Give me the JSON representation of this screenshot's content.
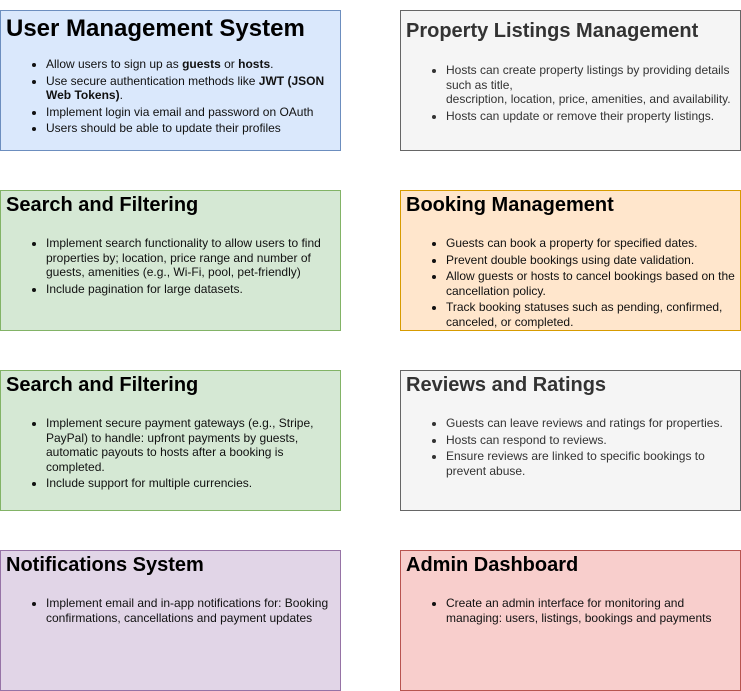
{
  "cards": {
    "user_mgmt": {
      "title": "User Management System",
      "items": [
        [
          "Allow users to sign up as ",
          {
            "b": "guests"
          },
          " or ",
          {
            "b": "hosts"
          },
          "."
        ],
        [
          "Use secure authentication methods like ",
          {
            "b": "JWT (JSON Web Tokens)"
          },
          "."
        ],
        [
          "Implement login via email and password on OAuth"
        ],
        [
          "Users should be able to update their profiles"
        ]
      ]
    },
    "property": {
      "title": "Property Listings Management",
      "items": [
        [
          "Hosts can create property listings by providing details such as title,\ndescription, location, price, amenities, and availability."
        ],
        [
          "Hosts can update or remove their property listings."
        ]
      ]
    },
    "search": {
      "title": "Search and Filtering",
      "items": [
        [
          "Implement search functionality to allow users to find properties by; location, price range and number of guests, amenities (e.g., Wi-Fi, pool, pet-friendly)"
        ],
        [
          "Include pagination for large datasets."
        ]
      ]
    },
    "booking": {
      "title": "Booking Management",
      "items": [
        [
          "Guests can book a property for specified dates."
        ],
        [
          "Prevent double bookings using date validation."
        ],
        [
          "Allow guests or hosts to cancel bookings based on the cancellation policy."
        ],
        [
          "Track booking statuses such as pending, confirmed, canceled, or completed."
        ]
      ]
    },
    "payment": {
      "title": "Search and Filtering",
      "items": [
        [
          "Implement secure payment gateways (e.g., Stripe, PayPal) to handle: upfront payments by guests, automatic payouts to hosts after a booking is completed."
        ],
        [
          "Include support for multiple currencies."
        ]
      ]
    },
    "reviews": {
      "title": "Reviews and Ratings",
      "items": [
        [
          "Guests can leave reviews and ratings for properties."
        ],
        [
          "Hosts can respond to reviews."
        ],
        [
          "Ensure reviews are linked to specific bookings to prevent abuse."
        ]
      ]
    },
    "notifications": {
      "title": "Notifications System",
      "items": [
        [
          "Implement email and in-app notifications for: Booking confirmations, cancellations and payment updates"
        ]
      ]
    },
    "admin": {
      "title": "Admin Dashboard",
      "items": [
        [
          "Create an admin interface for monitoring and managing: users, listings, bookings and payments"
        ]
      ]
    }
  },
  "colors": {
    "blue_fill": "#dae8fc",
    "gray_fill": "#f5f5f5",
    "green_fill": "#d5e8d4",
    "orange_fill": "#ffe6cc",
    "purple_fill": "#e1d5e7",
    "red_fill": "#f8cecc"
  }
}
